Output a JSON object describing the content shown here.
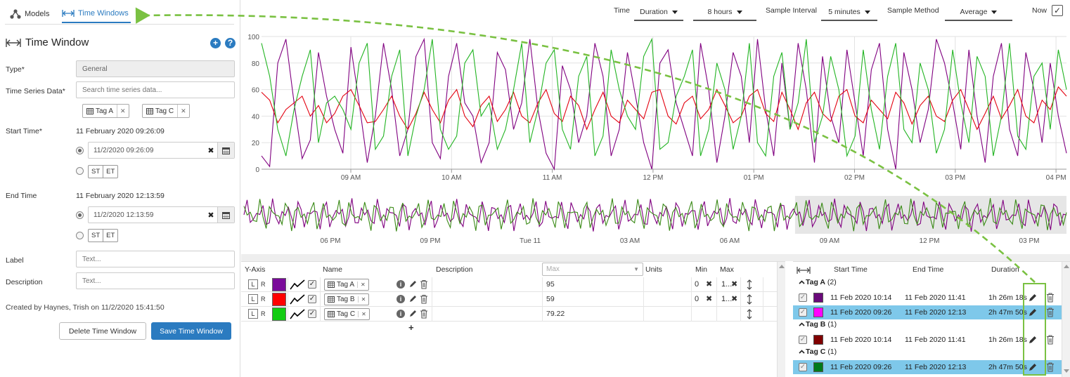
{
  "nav": {
    "tabs": [
      {
        "label": "Models",
        "icon": "models-icon"
      },
      {
        "label": "Time Windows",
        "icon": "time-window-icon",
        "active": true
      }
    ]
  },
  "panel": {
    "title": "Time Window",
    "fields": {
      "type_label": "Type*",
      "type_value": "General",
      "tsd_label": "Time Series Data*",
      "tsd_placeholder": "Search time series data...",
      "chips": [
        "Tag A",
        "Tag C"
      ],
      "start_label": "Start Time*",
      "start_text": "11 February 2020 09:26:09",
      "start_input": "11/2/2020 09:26:09",
      "end_label": "End Time",
      "end_text": "11 February 2020 12:13:59",
      "end_input": "11/2/2020 12:13:59",
      "st": "ST",
      "et": "ET",
      "label_label": "Label",
      "label_placeholder": "Text...",
      "desc_label": "Description",
      "desc_placeholder": "Text..."
    },
    "created_by": "Created by Haynes, Trish on 11/2/2020 15:41:50",
    "delete_button": "Delete Time Window",
    "save_button": "Save Time Window"
  },
  "toolbar": {
    "time_label": "Time",
    "time_value": "Duration",
    "duration_value": "8 hours",
    "interval_label": "Sample Interval",
    "interval_value": "5 minutes",
    "method_label": "Sample Method",
    "method_value": "Average",
    "now_label": "Now",
    "now_checked": true
  },
  "chart_data": [
    {
      "type": "line",
      "y_ticks": [
        0,
        20,
        40,
        60,
        80,
        100
      ],
      "ylim": [
        0,
        100
      ],
      "x_ticks": [
        "09 AM",
        "10 AM",
        "11 AM",
        "12 PM",
        "01 PM",
        "02 PM",
        "03 PM",
        "04 PM"
      ],
      "grid": true,
      "series": [
        {
          "color": "#800080",
          "values": [
            10,
            2,
            80,
            98,
            50,
            8,
            22,
            88,
            55,
            30,
            12,
            92,
            50,
            5,
            40,
            95,
            60,
            10,
            30,
            85,
            98,
            20,
            8,
            70,
            95,
            50,
            40,
            5,
            20,
            88,
            75,
            30,
            50,
            98,
            45,
            12,
            0,
            78,
            60,
            20,
            40,
            95,
            70,
            10,
            30,
            88,
            55,
            20,
            0,
            80,
            90,
            50,
            30,
            10,
            95,
            60,
            5,
            40,
            88,
            70,
            20,
            98,
            45,
            10,
            80,
            30,
            95,
            60,
            5,
            85,
            40,
            20,
            90,
            50,
            10,
            75,
            95,
            30,
            0,
            88,
            60,
            20,
            45,
            98,
            80,
            50,
            15,
            90,
            40,
            5,
            70,
            95,
            30,
            10,
            88,
            60,
            20,
            80,
            40,
            12
          ]
        },
        {
          "color": "#e3000f",
          "values": [
            58,
            52,
            35,
            45,
            50,
            55,
            40,
            48,
            35,
            42,
            55,
            60,
            48,
            35,
            36,
            45,
            55,
            40,
            30,
            42,
            58,
            45,
            35,
            52,
            60,
            40,
            32,
            48,
            55,
            36,
            45,
            58,
            40,
            35,
            50,
            60,
            42,
            36,
            55,
            48,
            30,
            45,
            58,
            40,
            35,
            52,
            45,
            38,
            58,
            60,
            40,
            34,
            50,
            55,
            38,
            45,
            60,
            48,
            35,
            40,
            55,
            60,
            42,
            36,
            58,
            45,
            30,
            50,
            58,
            42,
            36,
            55,
            60,
            40,
            35,
            52,
            45,
            38,
            58,
            50,
            34,
            48,
            55,
            40,
            36,
            52,
            60,
            45,
            30,
            42,
            55,
            38,
            48,
            60,
            40,
            35,
            52,
            45,
            62,
            55
          ]
        },
        {
          "color": "#22b422",
          "values": [
            95,
            70,
            30,
            10,
            45,
            70,
            90,
            20,
            50,
            55,
            45,
            30,
            80,
            95,
            15,
            25,
            70,
            90,
            10,
            40,
            60,
            98,
            30,
            15,
            25,
            80,
            90,
            40,
            50,
            15,
            30,
            60,
            95,
            20,
            45,
            80,
            90,
            30,
            15,
            70,
            85,
            10,
            25,
            90,
            60,
            40,
            30,
            85,
            98,
            15,
            20,
            55,
            70,
            90,
            10,
            30,
            80,
            60,
            15,
            40,
            95,
            20,
            10,
            70,
            88,
            30,
            50,
            98,
            20,
            40,
            85,
            60,
            10,
            25,
            90,
            45,
            15,
            70,
            95,
            30,
            20,
            80,
            60,
            12,
            30,
            90,
            50,
            20,
            85,
            70,
            10,
            40,
            95,
            25,
            15,
            70,
            80,
            30,
            90,
            60
          ]
        }
      ]
    },
    {
      "type": "line",
      "x_ticks": [
        "06 PM",
        "09 PM",
        "Tue 11",
        "03 AM",
        "06 AM",
        "09 AM",
        "12 PM",
        "03 PM"
      ],
      "selection_range": [
        0.67,
        1.0
      ],
      "series": [
        {
          "color": "#800080"
        },
        {
          "color": "#3a8a16"
        }
      ]
    }
  ],
  "series_table": {
    "headers": {
      "yaxis": "Y-Axis",
      "name": "Name",
      "description": "Description",
      "max_placeholder": "Max",
      "units": "Units",
      "min": "Min",
      "max": "Max"
    },
    "rows": [
      {
        "name": "Tag A",
        "color": "#7a0a9a",
        "max_value": "95",
        "min": "0",
        "max": "1..."
      },
      {
        "name": "Tag B",
        "color": "#ff0000",
        "max_value": "59",
        "min": "0",
        "max": "1..."
      },
      {
        "name": "Tag C",
        "color": "#11cc11",
        "max_value": "79.22",
        "min": "",
        "max": ""
      }
    ],
    "add": "+"
  },
  "tw_table": {
    "headers": {
      "start": "Start Time",
      "end": "End Time",
      "duration": "Duration"
    },
    "groups": [
      {
        "name": "Tag A",
        "count": "(2)",
        "rows": [
          {
            "color": "#6a0a7a",
            "start": "11 Feb 2020 10:14",
            "end": "11 Feb 2020 11:41",
            "duration": "1h 26m 18s",
            "selected": false
          },
          {
            "color": "#ff00ff",
            "start": "11 Feb 2020 09:26",
            "end": "11 Feb 2020 12:13",
            "duration": "2h 47m 50s",
            "selected": true
          }
        ]
      },
      {
        "name": "Tag B",
        "count": "(1)",
        "rows": [
          {
            "color": "#800000",
            "start": "11 Feb 2020 10:14",
            "end": "11 Feb 2020 11:41",
            "duration": "1h 26m 18s",
            "selected": false
          }
        ]
      },
      {
        "name": "Tag C",
        "count": "(1)",
        "rows": [
          {
            "color": "#007a1a",
            "start": "11 Feb 2020 09:26",
            "end": "11 Feb 2020 12:13",
            "duration": "2h 47m 50s",
            "selected": true
          }
        ]
      }
    ]
  }
}
